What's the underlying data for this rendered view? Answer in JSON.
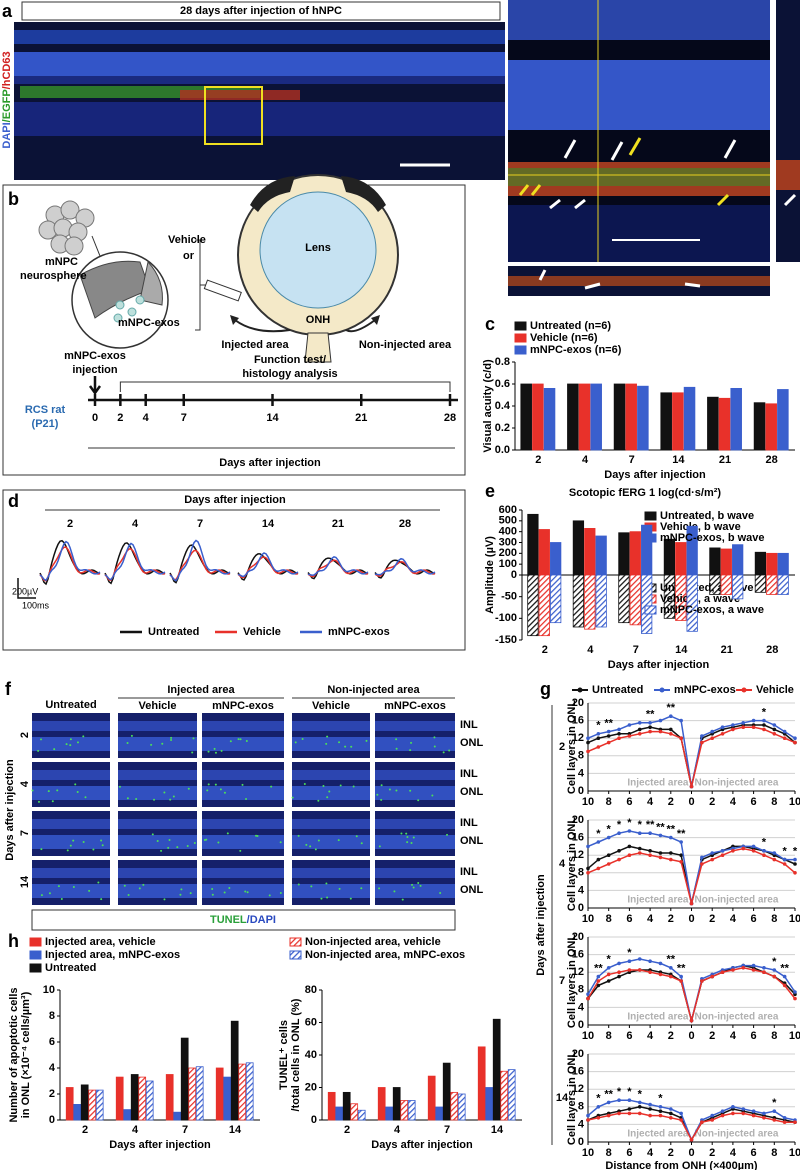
{
  "a": {
    "label": "a",
    "title": "28 days after injection of hNPC",
    "stain": [
      "DAPI",
      "/EGFP",
      "/hCD63"
    ]
  },
  "b": {
    "label": "b",
    "neurosphere": [
      "mNPC",
      "neurosphere"
    ],
    "vehicle": "Vehicle",
    "or": "or",
    "exos": "mNPC-exos",
    "lens": "Lens",
    "onh": "ONH",
    "injected": "Injected area",
    "non_injected": "Non-injected area",
    "injection": [
      "mNPC-exos",
      "injection"
    ],
    "analysis": [
      "Function test/",
      "histology analysis"
    ],
    "rat": [
      "RCS rat",
      "(P21)"
    ],
    "timeline": [
      0,
      2,
      4,
      7,
      14,
      21,
      28
    ],
    "xlabel": "Days after injection"
  },
  "d": {
    "label": "d",
    "title": "Days after injection",
    "days": [
      "2",
      "4",
      "7",
      "14",
      "21",
      "28"
    ],
    "scale_v": "200µV",
    "scale_t": "100ms",
    "legend": [
      "Untreated",
      "Vehicle",
      "mNPC-exos"
    ],
    "colors": [
      "#111111",
      "#e8312a",
      "#3a5fcd"
    ]
  },
  "f": {
    "label": "f",
    "columns": [
      "Untreated",
      "Vehicle",
      "mNPC-exos",
      "Vehicle",
      "mNPC-exos"
    ],
    "groups": [
      "Injected area",
      "Non-injected area"
    ],
    "rows": [
      "2",
      "4",
      "7",
      "14"
    ],
    "layers": [
      "INL",
      "ONL"
    ],
    "ylabel": "Days after injection",
    "stain": [
      "TUNEL",
      "/DAPI"
    ]
  },
  "g": {
    "label": "g",
    "ylabel": "Days after injection"
  },
  "chart_data": [
    {
      "panel_label": "c",
      "type": "bar",
      "categories": [
        "2",
        "4",
        "7",
        "14",
        "21",
        "28"
      ],
      "series": [
        {
          "name": "Untreated (n=6)",
          "color": "#111111",
          "values": [
            0.6,
            0.6,
            0.6,
            0.52,
            0.48,
            0.43
          ]
        },
        {
          "name": "Vehicle (n=6)",
          "color": "#e8312a",
          "values": [
            0.6,
            0.6,
            0.6,
            0.52,
            0.47,
            0.42
          ]
        },
        {
          "name": "mNPC-exos (n=6)",
          "color": "#3a5fcd",
          "values": [
            0.56,
            0.6,
            0.58,
            0.57,
            0.56,
            0.55
          ]
        }
      ],
      "ylim": [
        0,
        0.8
      ],
      "yticks": [
        {
          "value": 0,
          "label": "0.0"
        },
        0.2,
        0.4,
        0.6,
        0.8
      ],
      "ylabel": "Visual acuity (c/d)",
      "xlabel": "Days after injection"
    },
    {
      "panel_label": "e",
      "type": "bar",
      "title": "Scotopic fERG 1 log(cd·s/m²)",
      "categories": [
        "2",
        "4",
        "7",
        "14",
        "21",
        "28"
      ],
      "series": [
        {
          "name": "Untreated, b wave",
          "color": "#111111",
          "values": [
            560,
            500,
            390,
            330,
            250,
            210
          ]
        },
        {
          "name": "Vehicle, b wave",
          "color": "#e8312a",
          "values": [
            420,
            430,
            400,
            300,
            240,
            200
          ]
        },
        {
          "name": "mNPC-exos, b wave",
          "color": "#3a5fcd",
          "values": [
            300,
            360,
            460,
            450,
            280,
            200
          ]
        },
        {
          "name": "Untreated, a wave",
          "color": "#111111",
          "hatch": true,
          "values": [
            -140,
            -120,
            -110,
            -100,
            -45,
            -40
          ]
        },
        {
          "name": "Vehicle, a wave",
          "color": "#e8312a",
          "hatch": true,
          "values": [
            -140,
            -125,
            -115,
            -105,
            -45,
            -45
          ]
        },
        {
          "name": "mNPC-exos, a wave",
          "color": "#3a5fcd",
          "hatch": true,
          "values": [
            -110,
            -120,
            -135,
            -130,
            -55,
            -45
          ]
        }
      ],
      "ylim": [
        -150,
        600
      ],
      "yticks": [
        600,
        500,
        400,
        300,
        200,
        100,
        0,
        -50,
        -100,
        -150
      ],
      "ylabel": "Amplitude (µV)",
      "xlabel": "Days after injection"
    },
    {
      "type": "line",
      "label": "2",
      "x": [
        -10,
        -9,
        -8,
        -7,
        -6,
        -5,
        -4,
        -3,
        -2,
        -1,
        0,
        1,
        2,
        3,
        4,
        5,
        6,
        7,
        8,
        9,
        10
      ],
      "xlim": [
        -10,
        10
      ],
      "xticks": [
        {
          "value": -10,
          "label": "10"
        },
        {
          "value": -8,
          "label": "8"
        },
        {
          "value": -6,
          "label": "6"
        },
        {
          "value": -4,
          "label": "4"
        },
        {
          "value": -2,
          "label": "2"
        },
        0,
        2,
        4,
        6,
        8,
        10
      ],
      "ylim": [
        0,
        20
      ],
      "yticks": [
        0,
        4,
        8,
        12,
        16,
        20
      ],
      "grid": true,
      "ylabel": "Cell layers in ONL",
      "annotations": [
        "Injected area",
        "Non-injected area"
      ],
      "series": [
        {
          "name": "Untreated",
          "color": "#111111",
          "values": [
            11,
            12,
            12.5,
            13,
            13,
            14,
            14.5,
            14,
            14,
            12,
            1,
            12,
            13,
            14,
            14.5,
            15,
            15,
            15,
            14,
            13,
            11
          ]
        },
        {
          "name": "mNPC-exos",
          "color": "#3a5fcd",
          "values": [
            12,
            13,
            13.5,
            14,
            15,
            15.5,
            15.5,
            16,
            17,
            16,
            1,
            12.5,
            13.5,
            14.5,
            15,
            15.5,
            16,
            16,
            15,
            13.5,
            12
          ],
          "stars": [
            null,
            "*",
            "**",
            null,
            null,
            null,
            "**",
            null,
            "**",
            null,
            null,
            null,
            null,
            null,
            null,
            null,
            null,
            "*",
            null,
            null,
            null
          ]
        },
        {
          "name": "Vehicle",
          "color": "#e8312a",
          "values": [
            9,
            10,
            11,
            12,
            12.5,
            13,
            13.5,
            13.5,
            13,
            12,
            1,
            11,
            12,
            13,
            14,
            14.5,
            14.5,
            14,
            13,
            12,
            11
          ]
        }
      ]
    },
    {
      "type": "line",
      "label": "4",
      "x": [
        -10,
        -9,
        -8,
        -7,
        -6,
        -5,
        -4,
        -3,
        -2,
        -1,
        0,
        1,
        2,
        3,
        4,
        5,
        6,
        7,
        8,
        9,
        10
      ],
      "xlim": [
        -10,
        10
      ],
      "xticks": [
        {
          "value": -10,
          "label": "10"
        },
        {
          "value": -8,
          "label": "8"
        },
        {
          "value": -6,
          "label": "6"
        },
        {
          "value": -4,
          "label": "4"
        },
        {
          "value": -2,
          "label": "2"
        },
        0,
        2,
        4,
        6,
        8,
        10
      ],
      "ylim": [
        0,
        20
      ],
      "yticks": [
        0,
        4,
        8,
        12,
        16,
        20
      ],
      "grid": true,
      "ylabel": "Cell layers in ONL",
      "annotations": [
        "Injected area",
        "Non-injected area"
      ],
      "series": [
        {
          "color": "#111111",
          "values": [
            9,
            11,
            12,
            13,
            14,
            13.5,
            13,
            12.5,
            12.5,
            12,
            1,
            11,
            12,
            13,
            14,
            14,
            13.5,
            13,
            12,
            11,
            10
          ]
        },
        {
          "color": "#3a5fcd",
          "values": [
            14,
            15,
            16,
            17,
            17.5,
            17,
            17,
            16.5,
            16,
            15,
            1,
            11.5,
            12.5,
            13,
            13.5,
            14,
            14,
            13,
            12.5,
            11,
            11
          ],
          "stars": [
            null,
            "*",
            "*",
            "*",
            "*",
            "*",
            "**",
            "**",
            "**",
            "**",
            null,
            null,
            null,
            null,
            null,
            null,
            null,
            "*",
            null,
            "*",
            "*"
          ]
        },
        {
          "color": "#e8312a",
          "values": [
            8,
            9,
            10,
            11,
            12,
            12.5,
            12,
            11.5,
            11,
            10.5,
            1,
            10,
            11,
            12,
            13,
            13.5,
            13,
            12,
            11,
            10,
            8
          ]
        }
      ]
    },
    {
      "type": "line",
      "label": "7",
      "x": [
        -10,
        -9,
        -8,
        -7,
        -6,
        -5,
        -4,
        -3,
        -2,
        -1,
        0,
        1,
        2,
        3,
        4,
        5,
        6,
        7,
        8,
        9,
        10
      ],
      "xlim": [
        -10,
        10
      ],
      "xticks": [
        {
          "value": -10,
          "label": "10"
        },
        {
          "value": -8,
          "label": "8"
        },
        {
          "value": -6,
          "label": "6"
        },
        {
          "value": -4,
          "label": "4"
        },
        {
          "value": -2,
          "label": "2"
        },
        0,
        2,
        4,
        6,
        8,
        10
      ],
      "ylim": [
        0,
        20
      ],
      "yticks": [
        0,
        4,
        8,
        12,
        16,
        20
      ],
      "grid": true,
      "ylabel": "Cell layers in ONL",
      "annotations": [
        "Injected area",
        "Non-injected area"
      ],
      "series": [
        {
          "color": "#111111",
          "values": [
            6,
            9,
            10,
            11,
            12,
            12.5,
            12.5,
            12,
            11.5,
            10,
            1,
            10,
            11,
            12,
            13,
            13.5,
            13,
            12,
            11,
            9.5,
            7
          ]
        },
        {
          "color": "#3a5fcd",
          "values": [
            7,
            11,
            13,
            14,
            14.5,
            15,
            14.5,
            14,
            13,
            11,
            1,
            10.5,
            11.5,
            12.5,
            13,
            13.5,
            13.5,
            13,
            12.5,
            11,
            7.5
          ],
          "stars": [
            null,
            "**",
            "*",
            null,
            "*",
            null,
            null,
            null,
            "**",
            "**",
            null,
            null,
            null,
            null,
            null,
            null,
            null,
            null,
            "*",
            "**",
            null
          ]
        },
        {
          "color": "#e8312a",
          "values": [
            6,
            10,
            11.5,
            12,
            12.5,
            12.5,
            12,
            11.5,
            11,
            10,
            1,
            10,
            11,
            12,
            12.5,
            13,
            12.5,
            12,
            11,
            9,
            6
          ]
        }
      ]
    },
    {
      "type": "line",
      "label": "14",
      "x": [
        -10,
        -9,
        -8,
        -7,
        -6,
        -5,
        -4,
        -3,
        -2,
        -1,
        0,
        1,
        2,
        3,
        4,
        5,
        6,
        7,
        8,
        9,
        10
      ],
      "xlim": [
        -10,
        10
      ],
      "xticks": [
        {
          "value": -10,
          "label": "10"
        },
        {
          "value": -8,
          "label": "8"
        },
        {
          "value": -6,
          "label": "6"
        },
        {
          "value": -4,
          "label": "4"
        },
        {
          "value": -2,
          "label": "2"
        },
        0,
        2,
        4,
        6,
        8,
        10
      ],
      "ylim": [
        0,
        20
      ],
      "yticks": [
        0,
        4,
        8,
        12,
        16,
        20
      ],
      "grid": true,
      "ylabel": "Cell layers in ONL",
      "annotations": [
        "Injected area",
        "Non-injected area"
      ],
      "xlabel": "Distance from ONH (×400µm)",
      "series": [
        {
          "color": "#111111",
          "values": [
            5,
            6,
            6.5,
            7,
            7.5,
            8,
            7.5,
            7,
            6.5,
            5.5,
            0.5,
            4.5,
            5.5,
            6.5,
            7.5,
            7,
            6.5,
            6,
            5.5,
            5,
            4.5
          ]
        },
        {
          "color": "#3a5fcd",
          "values": [
            6,
            8,
            9,
            9.5,
            9.5,
            9,
            8.5,
            8,
            7.5,
            6.5,
            0.5,
            5,
            6,
            7,
            8,
            7.5,
            7,
            6.5,
            7,
            5.5,
            5
          ],
          "stars": [
            null,
            "*",
            "**",
            "*",
            "*",
            "*",
            null,
            "*",
            null,
            null,
            null,
            null,
            null,
            null,
            null,
            null,
            null,
            null,
            "*",
            null,
            null
          ]
        },
        {
          "color": "#e8312a",
          "values": [
            5,
            5.5,
            6,
            6.5,
            6.5,
            6.5,
            6,
            6,
            5.5,
            5,
            0.5,
            4.5,
            5,
            6,
            6.5,
            6.5,
            6,
            5.5,
            5,
            4.5,
            4.5
          ]
        }
      ]
    },
    {
      "panel_label": "h",
      "type": "bar",
      "categories": [
        "2",
        "4",
        "7",
        "14"
      ],
      "series": [
        {
          "name": "Injected area, vehicle",
          "color": "#e8312a",
          "values": [
            2.5,
            3.3,
            3.5,
            4.0
          ]
        },
        {
          "name": "Injected area, mNPC-exos",
          "color": "#3a5fcd",
          "values": [
            1.2,
            0.8,
            0.6,
            3.3
          ]
        },
        {
          "name": "Untreated",
          "color": "#111111",
          "values": [
            2.7,
            3.5,
            6.3,
            7.6
          ]
        },
        {
          "color": "#e8312a",
          "hatch": true,
          "values": [
            2.3,
            3.3,
            4.0,
            4.3
          ]
        },
        {
          "color": "#3a5fcd",
          "hatch": true,
          "values": [
            2.3,
            3.0,
            4.1,
            4.4
          ]
        }
      ],
      "ylim": [
        0,
        10
      ],
      "yticks": [
        0,
        2,
        4,
        6,
        8,
        10
      ],
      "ylabel": [
        "Number of apoptotic cells",
        "in ONL (×10⁻⁴ cells/µm³)"
      ],
      "xlabel": "Days after injection"
    },
    {
      "type": "bar",
      "categories": [
        "2",
        "4",
        "7",
        "14"
      ],
      "series": [
        {
          "color": "#e8312a",
          "values": [
            17,
            20,
            27,
            45
          ]
        },
        {
          "color": "#3a5fcd",
          "values": [
            8,
            8,
            8,
            20
          ]
        },
        {
          "color": "#111111",
          "values": [
            17,
            20,
            35,
            62
          ]
        },
        {
          "name": "Non-injected area, vehicle",
          "color": "#e8312a",
          "hatch": true,
          "values": [
            10,
            12,
            17,
            30
          ]
        },
        {
          "name": "Non-injected area, mNPC-exos",
          "color": "#3a5fcd",
          "hatch": true,
          "values": [
            6,
            12,
            16,
            31
          ]
        }
      ],
      "ylim": [
        0,
        80
      ],
      "yticks": [
        0,
        20,
        40,
        60,
        80
      ],
      "ylabel": [
        "TUNEL⁺ cells",
        "/total cells in ONL (%)"
      ],
      "xlabel": "Days after injection"
    }
  ]
}
